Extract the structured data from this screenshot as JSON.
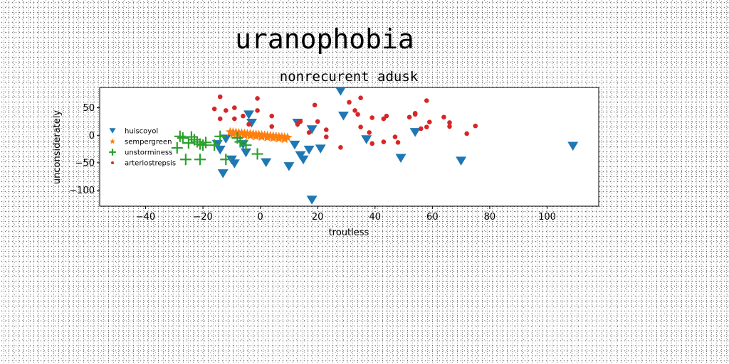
{
  "chart_data": {
    "type": "scatter",
    "suptitle": "uranophobia",
    "title": "nonrecurent adusk",
    "xlabel": "troutless",
    "ylabel": "unconsiderately",
    "xlim": [
      -56,
      118
    ],
    "ylim": [
      -129,
      87
    ],
    "xticks": [
      -40,
      -20,
      0,
      20,
      40,
      60,
      80,
      100
    ],
    "yticks": [
      50,
      0,
      -50,
      -100
    ],
    "grid": false,
    "legend_position": "center-left",
    "series": [
      {
        "name": "huiscoyol",
        "marker": "triangle-down",
        "color": "#1f77b4",
        "points": [
          [
            -4,
            37
          ],
          [
            -3,
            22
          ],
          [
            -12,
            -7
          ],
          [
            -6,
            -17
          ],
          [
            -15,
            -17
          ],
          [
            -14,
            -27
          ],
          [
            -10,
            -45
          ],
          [
            -13,
            -70
          ],
          [
            -9,
            -52
          ],
          [
            -5,
            -32
          ],
          [
            2,
            -50
          ],
          [
            10,
            -57
          ],
          [
            12,
            -18
          ],
          [
            15,
            -45
          ],
          [
            14,
            -37
          ],
          [
            17,
            -27
          ],
          [
            18,
            10
          ],
          [
            13,
            22
          ],
          [
            21,
            -25
          ],
          [
            18,
            -118
          ],
          [
            28,
            80
          ],
          [
            29,
            35
          ],
          [
            37,
            -8
          ],
          [
            49,
            -42
          ],
          [
            54,
            5
          ],
          [
            70,
            -47
          ],
          [
            109,
            -20
          ]
        ]
      },
      {
        "name": "sempergreen",
        "marker": "star",
        "color": "#ff7f0e",
        "points": [
          [
            -10.5,
            6
          ],
          [
            -9.5,
            5.5
          ],
          [
            -8.5,
            5
          ],
          [
            -7.5,
            4.5
          ],
          [
            -6.5,
            4
          ],
          [
            -5.5,
            3.5
          ],
          [
            -4.5,
            3
          ],
          [
            -3.5,
            2.5
          ],
          [
            -2.5,
            2
          ],
          [
            -1.5,
            1.5
          ],
          [
            -0.5,
            1
          ],
          [
            0.5,
            0.5
          ],
          [
            1.5,
            0
          ],
          [
            2.5,
            -0.5
          ],
          [
            3.5,
            -1
          ],
          [
            4.5,
            -1.5
          ],
          [
            5.5,
            -2
          ],
          [
            6.5,
            -2.5
          ],
          [
            7.5,
            -3
          ],
          [
            8.5,
            -3.5
          ],
          [
            9.5,
            -4
          ],
          [
            -9.5,
            2
          ],
          [
            -7.5,
            1
          ],
          [
            -5.5,
            0
          ],
          [
            -3.5,
            -1
          ],
          [
            -1.5,
            -2
          ],
          [
            0.5,
            -3
          ],
          [
            2.5,
            -4
          ],
          [
            4.5,
            -5
          ],
          [
            6.5,
            -6
          ],
          [
            8.5,
            -7
          ]
        ]
      },
      {
        "name": "unstorminess",
        "marker": "plus",
        "color": "#2ca02c",
        "points": [
          [
            -28,
            -2
          ],
          [
            -27,
            -5
          ],
          [
            -24,
            -3
          ],
          [
            -23,
            -8
          ],
          [
            -22,
            -12
          ],
          [
            -21,
            -16
          ],
          [
            -20,
            -18
          ],
          [
            -19,
            -13
          ],
          [
            -16,
            -18
          ],
          [
            -14,
            -2
          ],
          [
            -8,
            -5
          ],
          [
            -7,
            -12
          ],
          [
            -5,
            -18
          ],
          [
            -1,
            -34
          ],
          [
            -26,
            -44
          ],
          [
            -21,
            -44
          ],
          [
            -12,
            -44
          ],
          [
            -29,
            -23
          ],
          [
            -25,
            -14
          ]
        ]
      },
      {
        "name": "arteriostrepsis",
        "marker": "circle",
        "color": "#d62728",
        "points": [
          [
            -14,
            70
          ],
          [
            -16,
            48
          ],
          [
            -14,
            30
          ],
          [
            -9,
            50
          ],
          [
            -9,
            30
          ],
          [
            -6,
            35
          ],
          [
            -4,
            20
          ],
          [
            -1,
            67
          ],
          [
            -1,
            45
          ],
          [
            4,
            35
          ],
          [
            4,
            16
          ],
          [
            14,
            25
          ],
          [
            13,
            20
          ],
          [
            17,
            5
          ],
          [
            19,
            55
          ],
          [
            20,
            25
          ],
          [
            23,
            -3
          ],
          [
            23,
            10
          ],
          [
            28,
            -22
          ],
          [
            31,
            60
          ],
          [
            33,
            45
          ],
          [
            34,
            38
          ],
          [
            35,
            68
          ],
          [
            35,
            15
          ],
          [
            38,
            5
          ],
          [
            39,
            -15
          ],
          [
            39,
            32
          ],
          [
            43,
            30
          ],
          [
            43,
            -12
          ],
          [
            44,
            35
          ],
          [
            47,
            -3
          ],
          [
            48,
            -13
          ],
          [
            52,
            33
          ],
          [
            54,
            38
          ],
          [
            54,
            40
          ],
          [
            56,
            12
          ],
          [
            58,
            15
          ],
          [
            59,
            24
          ],
          [
            58,
            63
          ],
          [
            64,
            33
          ],
          [
            66,
            23
          ],
          [
            66,
            16
          ],
          [
            72,
            3
          ],
          [
            75,
            17
          ],
          [
            -12,
            45
          ]
        ]
      }
    ]
  }
}
